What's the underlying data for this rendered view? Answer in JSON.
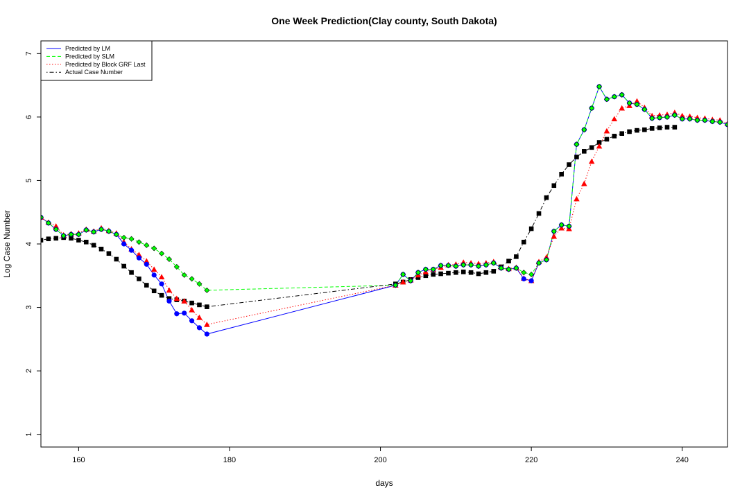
{
  "chart_data": {
    "type": "line",
    "title": "One Week Prediction(Clay county, South Dakota)",
    "xlabel": "days",
    "ylabel": "Log Case Number",
    "xlim": [
      155,
      246
    ],
    "ylim": [
      0.8,
      7.2
    ],
    "xticks": [
      160,
      180,
      200,
      220,
      240
    ],
    "yticks": [
      1,
      2,
      3,
      4,
      5,
      6,
      7
    ],
    "grid": false,
    "legend_position": "top-left",
    "legend": [
      {
        "label": "Predicted by LM",
        "color": "#0000ff",
        "dash": "solid"
      },
      {
        "label": "Predicted by SLM",
        "color": "#00ff00",
        "dash": "dashed"
      },
      {
        "label": "Predicted by Block GRF Last",
        "color": "#ff0000",
        "dash": "dotted"
      },
      {
        "label": "Actual Case Number",
        "color": "#000000",
        "dash": "dotdash"
      }
    ],
    "series": [
      {
        "name": "Predicted by LM",
        "color": "#0000ff",
        "marker": "circle",
        "segments": [
          {
            "x": [
              155,
              156,
              157,
              158,
              159,
              160,
              161,
              162,
              163,
              164,
              165,
              166,
              167,
              168,
              169,
              170,
              171,
              172,
              173,
              174,
              175,
              176,
              177
            ],
            "y": [
              4.42,
              4.33,
              4.23,
              4.13,
              4.15,
              4.15,
              4.22,
              4.19,
              4.23,
              4.2,
              4.15,
              4.0,
              3.9,
              3.78,
              3.68,
              3.51,
              3.37,
              3.1,
              2.9,
              2.91,
              2.79,
              2.68,
              2.58
            ]
          },
          {
            "x": [
              202,
              203,
              204,
              205,
              206,
              207,
              208,
              209,
              210,
              211,
              212,
              213,
              214,
              215,
              216,
              217,
              218,
              219,
              220,
              221,
              222,
              223,
              224,
              225,
              226,
              227,
              228,
              229,
              230,
              231,
              232,
              233,
              234,
              235,
              236,
              237,
              238,
              239,
              240,
              241,
              242,
              243,
              244,
              245,
              246
            ],
            "y": [
              3.35,
              3.52,
              3.42,
              3.55,
              3.6,
              3.6,
              3.66,
              3.66,
              3.65,
              3.67,
              3.67,
              3.65,
              3.67,
              3.7,
              3.62,
              3.6,
              3.62,
              3.45,
              3.42,
              3.7,
              3.75,
              4.2,
              4.3,
              4.28,
              5.57,
              5.8,
              6.14,
              6.48,
              6.28,
              6.32,
              6.35,
              6.22,
              6.2,
              6.12,
              5.98,
              5.99,
              6.0,
              6.03,
              5.97,
              5.97,
              5.95,
              5.95,
              5.93,
              5.92,
              5.88
            ]
          }
        ]
      },
      {
        "name": "Predicted by SLM",
        "color": "#00ff00",
        "marker": "diamond",
        "segments": [
          {
            "x": [
              155,
              156,
              157,
              158,
              159,
              160,
              161,
              162,
              163,
              164,
              165,
              166,
              167,
              168,
              169,
              170,
              171,
              172,
              173,
              174,
              175,
              176,
              177
            ],
            "y": [
              4.42,
              4.33,
              4.23,
              4.13,
              4.15,
              4.15,
              4.22,
              4.19,
              4.23,
              4.2,
              4.15,
              4.1,
              4.08,
              4.03,
              3.98,
              3.93,
              3.85,
              3.76,
              3.64,
              3.51,
              3.45,
              3.37,
              3.27
            ]
          },
          {
            "x": [
              202,
              203,
              204,
              205,
              206,
              207,
              208,
              209,
              210,
              211,
              212,
              213,
              214,
              215,
              216,
              217,
              218,
              219,
              220,
              221,
              222,
              223,
              224,
              225,
              226,
              227,
              228,
              229,
              230,
              231,
              232,
              233,
              234,
              235,
              236,
              237,
              238,
              239,
              240,
              241,
              242,
              243,
              244,
              245,
              246
            ],
            "y": [
              3.35,
              3.52,
              3.42,
              3.55,
              3.6,
              3.6,
              3.66,
              3.66,
              3.65,
              3.67,
              3.67,
              3.65,
              3.67,
              3.7,
              3.62,
              3.6,
              3.62,
              3.55,
              3.52,
              3.7,
              3.75,
              4.2,
              4.3,
              4.28,
              5.57,
              5.8,
              6.14,
              6.48,
              6.28,
              6.32,
              6.35,
              6.22,
              6.2,
              6.12,
              5.98,
              5.99,
              6.0,
              6.03,
              5.97,
              5.97,
              5.95,
              5.95,
              5.93,
              5.92,
              5.88
            ]
          }
        ]
      },
      {
        "name": "Predicted by Block GRF Last",
        "color": "#ff0000",
        "marker": "triangle",
        "segments": [
          {
            "x": [
              155,
              156,
              157,
              158,
              159,
              160,
              161,
              162,
              163,
              164,
              165,
              166,
              167,
              168,
              169,
              170,
              171,
              172,
              173,
              174,
              175,
              176,
              177
            ],
            "y": [
              4.42,
              4.34,
              4.28,
              4.14,
              4.16,
              4.17,
              4.23,
              4.2,
              4.25,
              4.21,
              4.17,
              4.03,
              3.92,
              3.83,
              3.73,
              3.6,
              3.48,
              3.27,
              3.14,
              3.1,
              2.96,
              2.84,
              2.73
            ]
          },
          {
            "x": [
              202,
              203,
              204,
              205,
              206,
              207,
              208,
              209,
              210,
              211,
              212,
              213,
              214,
              215,
              216,
              217,
              218,
              219,
              220,
              221,
              222,
              223,
              224,
              225,
              226,
              227,
              228,
              229,
              230,
              231,
              232,
              233,
              234,
              235,
              236,
              237,
              238,
              239,
              240,
              241,
              242,
              243,
              244,
              245,
              246
            ],
            "y": [
              3.35,
              3.4,
              3.43,
              3.51,
              3.56,
              3.6,
              3.63,
              3.67,
              3.68,
              3.71,
              3.7,
              3.69,
              3.7,
              3.72,
              3.63,
              3.61,
              3.63,
              3.46,
              3.42,
              3.72,
              3.79,
              4.12,
              4.25,
              4.24,
              4.71,
              4.95,
              5.3,
              5.54,
              5.78,
              5.97,
              6.14,
              6.18,
              6.25,
              6.15,
              6.02,
              6.03,
              6.04,
              6.07,
              6.02,
              6.01,
              5.99,
              5.98,
              5.96,
              5.95,
              5.9
            ]
          }
        ]
      },
      {
        "name": "Actual Case Number",
        "color": "#000000",
        "marker": "square",
        "segments": [
          {
            "x": [
              155,
              156,
              157,
              158,
              159,
              160,
              161,
              162,
              163,
              164,
              165,
              166,
              167,
              168,
              169,
              170,
              171,
              172,
              173,
              174,
              175,
              176,
              177
            ],
            "y": [
              4.06,
              4.08,
              4.09,
              4.1,
              4.09,
              4.06,
              4.03,
              3.98,
              3.92,
              3.85,
              3.76,
              3.65,
              3.55,
              3.45,
              3.35,
              3.26,
              3.19,
              3.14,
              3.12,
              3.1,
              3.07,
              3.04,
              3.01
            ]
          },
          {
            "x": [
              202,
              203,
              204,
              205,
              206,
              207,
              208,
              209,
              210,
              211,
              212,
              213,
              214,
              215,
              216,
              217,
              218,
              219,
              220,
              221,
              222,
              223,
              224,
              225,
              226,
              227,
              228,
              229,
              230,
              231,
              232,
              233,
              234,
              235,
              236,
              237,
              238,
              239
            ],
            "y": [
              3.37,
              3.4,
              3.44,
              3.47,
              3.5,
              3.52,
              3.53,
              3.54,
              3.55,
              3.56,
              3.55,
              3.53,
              3.55,
              3.57,
              3.64,
              3.73,
              3.8,
              4.03,
              4.24,
              4.48,
              4.73,
              4.92,
              5.1,
              5.25,
              5.37,
              5.46,
              5.52,
              5.6,
              5.65,
              5.7,
              5.74,
              5.77,
              5.79,
              5.8,
              5.82,
              5.83,
              5.84,
              5.84
            ]
          }
        ]
      }
    ]
  }
}
